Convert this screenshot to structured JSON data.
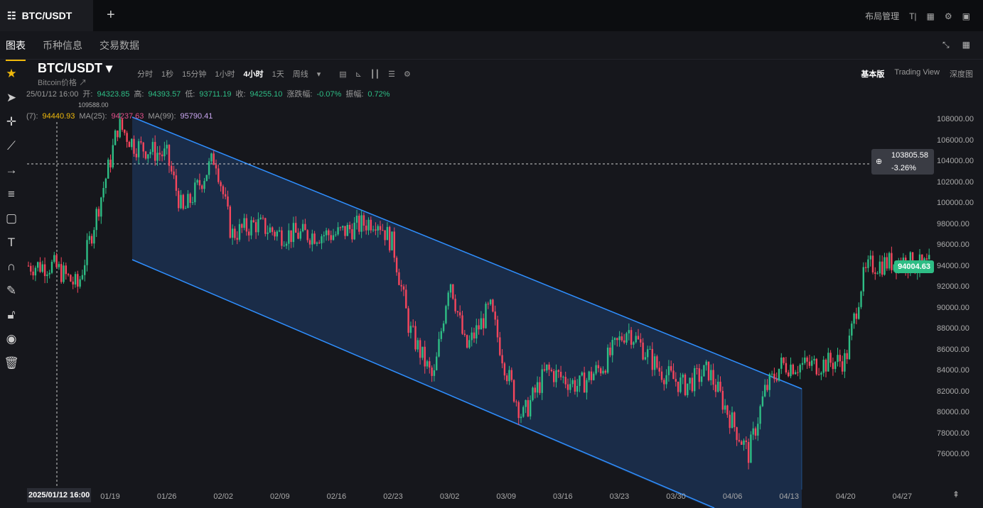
{
  "tab": {
    "title": "BTC/USDT"
  },
  "topbar": {
    "layout": "布局管理",
    "text_tool": "T|"
  },
  "subnav": [
    "图表",
    "币种信息",
    "交易数据"
  ],
  "symbol": {
    "name": "BTC/USDT",
    "sub": "Bitcoin价格 ↗"
  },
  "intervals": [
    "分时",
    "1秒",
    "15分钟",
    "1小时",
    "4小时",
    "1天",
    "周线"
  ],
  "active_interval": "4小时",
  "views": [
    "基本版",
    "Trading View",
    "深度图"
  ],
  "ohlc": {
    "time": "25/01/12 16:00",
    "open_label": "开:",
    "open": "94323.85",
    "high_label": "高:",
    "high": "94393.57",
    "low_label": "低:",
    "low": "93711.19",
    "close_label": "收:",
    "close": "94255.10",
    "chg_label": "涨跌幅:",
    "chg": "-0.07%",
    "amp_label": "振幅:",
    "amp": "0.72%"
  },
  "ma": {
    "ma7_label": "(7):",
    "ma7": "94440.93",
    "ma25_label": "MA(25):",
    "ma25": "94237.63",
    "ma99_label": "MA(99):",
    "ma99": "95790.41"
  },
  "high_marker": "109588.00",
  "crosshair": {
    "price": "103805.58",
    "pct": "-3.26%",
    "time": "2025/01/12 16:00"
  },
  "last_price": "94004.63",
  "colors": {
    "up": "#2ebd85",
    "down": "#f6465d",
    "channel": "#2f8fff",
    "accent": "#f0b90b"
  },
  "chart_data": {
    "type": "candlestick",
    "x_ticks": [
      "01/19",
      "01/26",
      "02/02",
      "02/09",
      "02/16",
      "02/23",
      "03/02",
      "03/09",
      "03/16",
      "03/23",
      "03/30",
      "04/06",
      "04/13",
      "04/20",
      "04/27"
    ],
    "y_ticks": [
      108000,
      106000,
      104000,
      102000,
      100000,
      98000,
      96000,
      94000,
      92000,
      90000,
      88000,
      86000,
      84000,
      82000,
      80000,
      78000,
      76000
    ],
    "ylim": [
      75000,
      109800
    ],
    "price_path": [
      [
        "01/12",
        94000
      ],
      [
        "01/15",
        92000
      ],
      [
        "01/19",
        104000
      ],
      [
        "01/20",
        107500
      ],
      [
        "01/22",
        105500
      ],
      [
        "01/26",
        104500
      ],
      [
        "01/28",
        99000
      ],
      [
        "02/01",
        104500
      ],
      [
        "02/03",
        97000
      ],
      [
        "02/06",
        98000
      ],
      [
        "02/09",
        97000
      ],
      [
        "02/16",
        97000
      ],
      [
        "02/21",
        98500
      ],
      [
        "02/23",
        96000
      ],
      [
        "02/25",
        88000
      ],
      [
        "02/28",
        83000
      ],
      [
        "03/02",
        93000
      ],
      [
        "03/04",
        86000
      ],
      [
        "03/07",
        90000
      ],
      [
        "03/09",
        84000
      ],
      [
        "03/11",
        79500
      ],
      [
        "03/14",
        84000
      ],
      [
        "03/18",
        82500
      ],
      [
        "03/21",
        84500
      ],
      [
        "03/24",
        88000
      ],
      [
        "03/28",
        84000
      ],
      [
        "03/31",
        82500
      ],
      [
        "04/03",
        84000
      ],
      [
        "04/06",
        79000
      ],
      [
        "04/08",
        76000
      ],
      [
        "04/10",
        82000
      ],
      [
        "04/12",
        84500
      ],
      [
        "04/16",
        84500
      ],
      [
        "04/20",
        85000
      ],
      [
        "04/22",
        92500
      ],
      [
        "04/23",
        94000
      ],
      [
        "04/27",
        94500
      ],
      [
        "04/29",
        94000
      ]
    ]
  }
}
